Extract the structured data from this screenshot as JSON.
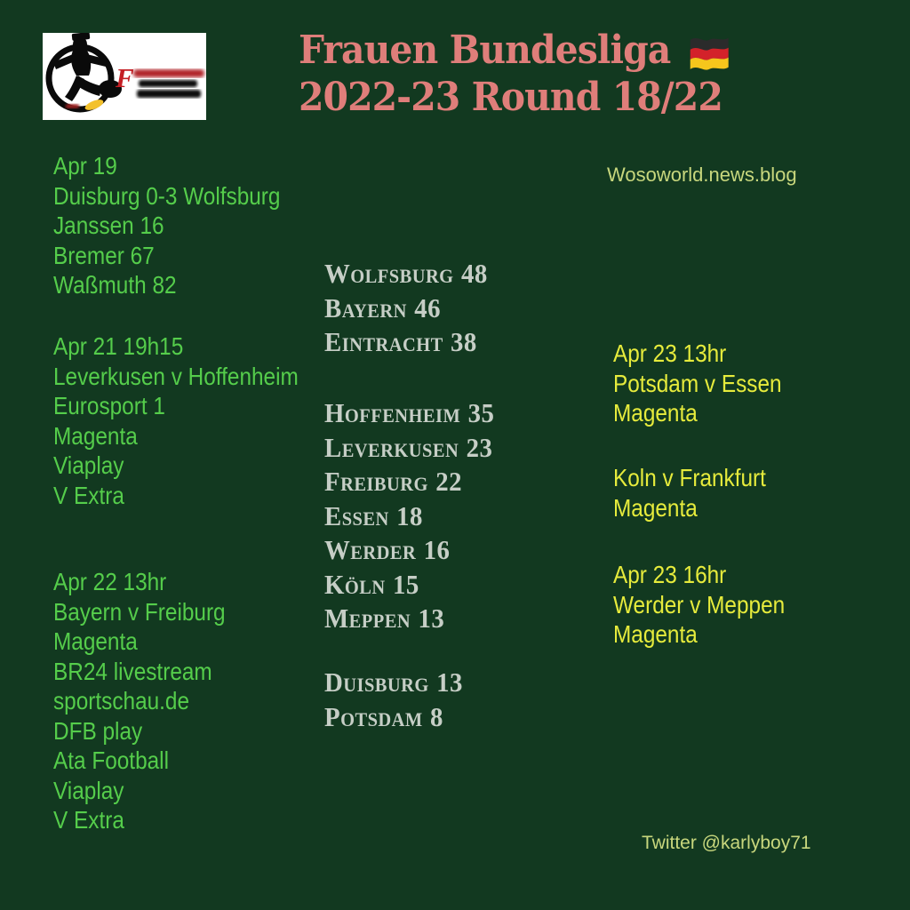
{
  "colors": {
    "background": "#123920",
    "title": "#df7e7a",
    "left_fixtures_green": "#55cd4b",
    "standings_gray": "#c6cec6",
    "right_fixtures_yellow": "#e6eb3c",
    "watermark_pale": "#c8d77d",
    "flag_black": "#2b2b2b",
    "flag_red": "#d3222a",
    "flag_gold": "#f6c61c"
  },
  "header": {
    "title_line1": "Frauen Bundesliga",
    "title_line2": "2022-23 Round 18/22",
    "flag_icon": "germany-flag"
  },
  "watermark": "Wosoworld.news.blog",
  "footer": {
    "twitter": "Twitter @karlyboy71"
  },
  "logo": {
    "letter": "F"
  },
  "fixtures_left": [
    {
      "lines": [
        "Apr 19",
        "Duisburg 0-3 Wolfsburg",
        "Janssen 16",
        "Bremer 67",
        "Waßmuth 82"
      ]
    },
    {
      "lines": [
        "Apr 21 19h15",
        "Leverkusen v Hoffenheim",
        "Eurosport 1",
        "Magenta",
        "Viaplay",
        "V Extra"
      ]
    },
    {
      "lines": [
        "Apr 22 13hr",
        "Bayern v Freiburg",
        "Magenta",
        "BR24 livestream",
        "sportschau.de",
        "DFB play",
        "Ata Football",
        "Viaplay",
        "V Extra"
      ]
    }
  ],
  "fixtures_right": [
    {
      "lines": [
        "Apr 23 13hr",
        "Potsdam v Essen",
        "Magenta"
      ]
    },
    {
      "lines": [
        "Koln v Frankfurt",
        "Magenta"
      ]
    },
    {
      "lines": [
        "Apr 23 16hr",
        "Werder v Meppen",
        "Magenta"
      ]
    }
  ],
  "standings_groups": [
    [
      {
        "team": "Wolfsburg",
        "points": 48
      },
      {
        "team": "Bayern",
        "points": 46
      },
      {
        "team": "Eintracht",
        "points": 38
      }
    ],
    [
      {
        "team": "Hoffenheim",
        "points": 35
      },
      {
        "team": "Leverkusen",
        "points": 23
      },
      {
        "team": "Freiburg",
        "points": 22
      },
      {
        "team": "Essen",
        "points": 18
      },
      {
        "team": "Werder",
        "points": 16
      },
      {
        "team": "Köln",
        "points": 15
      },
      {
        "team": "Meppen",
        "points": 13
      }
    ],
    [
      {
        "team": "Duisburg",
        "points": 13
      },
      {
        "team": "Potsdam",
        "points": 8
      }
    ]
  ]
}
